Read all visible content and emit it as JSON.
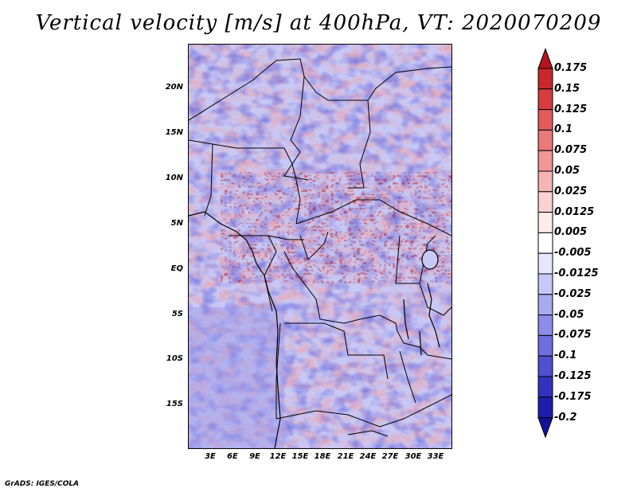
{
  "title": "Vertical velocity [m/s] at 400hPa, VT: 2020070209",
  "credit": "GrADS: IGES/COLA",
  "map": {
    "lat_labels": [
      "20N",
      "15N",
      "10N",
      "5N",
      "EQ",
      "5S",
      "10S",
      "15S"
    ],
    "lon_labels": [
      "3E",
      "6E",
      "9E",
      "12E",
      "15E",
      "18E",
      "21E",
      "24E",
      "27E",
      "30E",
      "33E"
    ],
    "lat_range": [
      -20,
      24.5
    ],
    "lon_range": [
      0,
      35
    ]
  },
  "colorbar": {
    "labels": [
      "0.175",
      "0.15",
      "0.125",
      "0.1",
      "0.075",
      "0.05",
      "0.025",
      "0.0125",
      "0.005",
      "-0.005",
      "-0.0125",
      "-0.025",
      "-0.05",
      "-0.075",
      "-0.1",
      "-0.125",
      "-0.175",
      "-0.2"
    ],
    "colors": [
      "#b4141e",
      "#c8282d",
      "#d63c3c",
      "#e25a5a",
      "#ec7878",
      "#f29696",
      "#f7b4b4",
      "#fbd2d2",
      "#fdebeb",
      "#ffffff",
      "#e6e6fc",
      "#c8c8f8",
      "#aaaaf2",
      "#8c8ceb",
      "#6e6ee0",
      "#5050d2",
      "#3232c2",
      "#1e1eae",
      "#12129a"
    ]
  }
}
